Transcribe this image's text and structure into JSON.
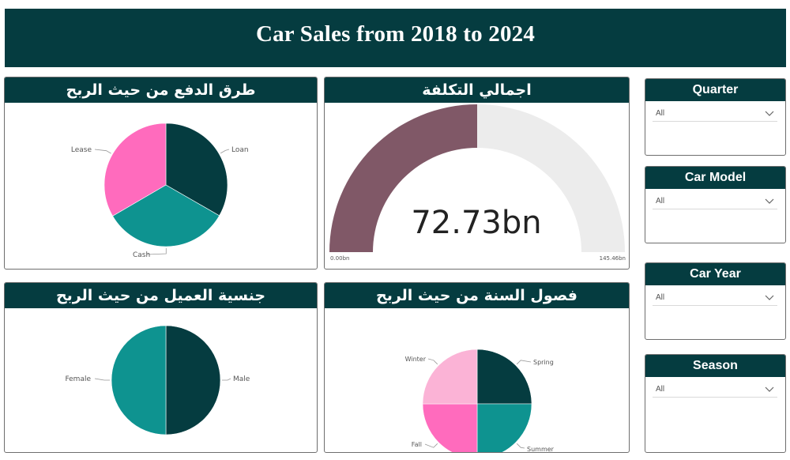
{
  "header": {
    "title": "Car Sales from 2018 to 2024"
  },
  "colors": {
    "dark_teal": "#053c40",
    "teal": "#0e9390",
    "pink": "#ff6bbd",
    "light_pink": "#fbb3d6",
    "gauge_fill": "#805867",
    "gauge_track": "#ececec"
  },
  "cards": {
    "payment": {
      "title": "طرق الدفع من حيث الربح"
    },
    "cost": {
      "title": "اجمالي التكلفة"
    },
    "nationality": {
      "title": "جنسية العميل من حيث الربح"
    },
    "season": {
      "title": "فصول السنة من حيث الربح"
    }
  },
  "slicers": [
    {
      "title": "Quarter",
      "value": "All",
      "icon": "chevron-down-icon"
    },
    {
      "title": "Car Model",
      "value": "All",
      "icon": "chevron-down-icon"
    },
    {
      "title": "Car Year",
      "value": "All",
      "icon": "chevron-down-icon"
    },
    {
      "title": "Season",
      "value": "All",
      "icon": "chevron-down-icon"
    }
  ],
  "chart_data": [
    {
      "type": "pie",
      "slices": [
        {
          "label": "Loan",
          "value": 33.3,
          "color": "#053c40"
        },
        {
          "label": "Cash",
          "value": 33.3,
          "color": "#0e9390"
        },
        {
          "label": "Lease",
          "value": 33.4,
          "color": "#ff6bbd"
        }
      ]
    },
    {
      "type": "gauge",
      "value_label": "72.73bn",
      "value": 72.73,
      "min": 0,
      "max": 145.46,
      "min_label": "0.00bn",
      "max_label": "145.46bn"
    },
    {
      "type": "pie",
      "slices": [
        {
          "label": "Male",
          "value": 50,
          "color": "#053c40"
        },
        {
          "label": "Female",
          "value": 50,
          "color": "#0e9390"
        }
      ]
    },
    {
      "type": "pie",
      "slices": [
        {
          "label": "Spring",
          "value": 25,
          "color": "#053c40"
        },
        {
          "label": "Summer",
          "value": 25,
          "color": "#0e9390"
        },
        {
          "label": "Fall",
          "value": 25,
          "color": "#ff6bbd"
        },
        {
          "label": "Winter",
          "value": 25,
          "color": "#fbb3d6"
        }
      ]
    }
  ]
}
